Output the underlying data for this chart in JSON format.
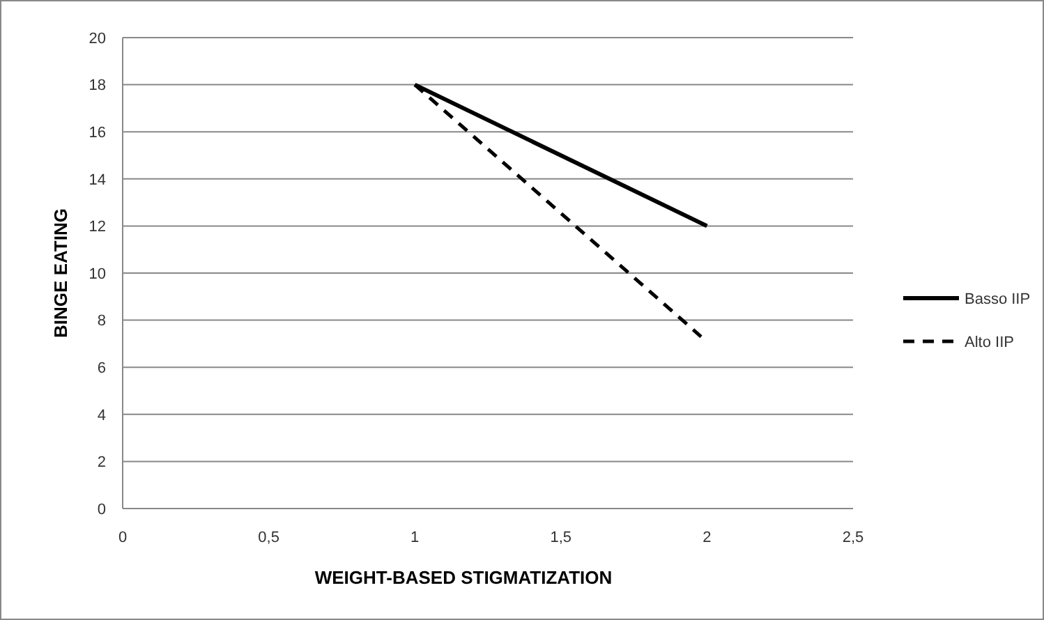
{
  "chart_data": {
    "type": "line",
    "xlabel": "WEIGHT-BASED STIGMATIZATION",
    "ylabel": "BINGE EATING",
    "xlim": [
      0,
      2.5
    ],
    "xticks": [
      0,
      {
        "value": 0.5,
        "label": "0,5"
      },
      1,
      {
        "value": 1.5,
        "label": "1,5"
      },
      2,
      {
        "value": 2.5,
        "label": "2,5"
      }
    ],
    "ylim": [
      0,
      20
    ],
    "yticks": [
      0,
      2,
      4,
      6,
      8,
      10,
      12,
      14,
      16,
      18,
      20
    ],
    "grid": "y",
    "legend": "right",
    "marker": "none",
    "series": [
      {
        "name": "Basso IIP",
        "color": "#000000",
        "x": [
          1,
          2
        ],
        "values": [
          18,
          12
        ],
        "line_style": "solid"
      },
      {
        "name": "Alto IIP",
        "color": "#000000",
        "x": [
          1,
          1.98
        ],
        "values": [
          18,
          7.3
        ],
        "line_style": "dashed"
      }
    ]
  }
}
